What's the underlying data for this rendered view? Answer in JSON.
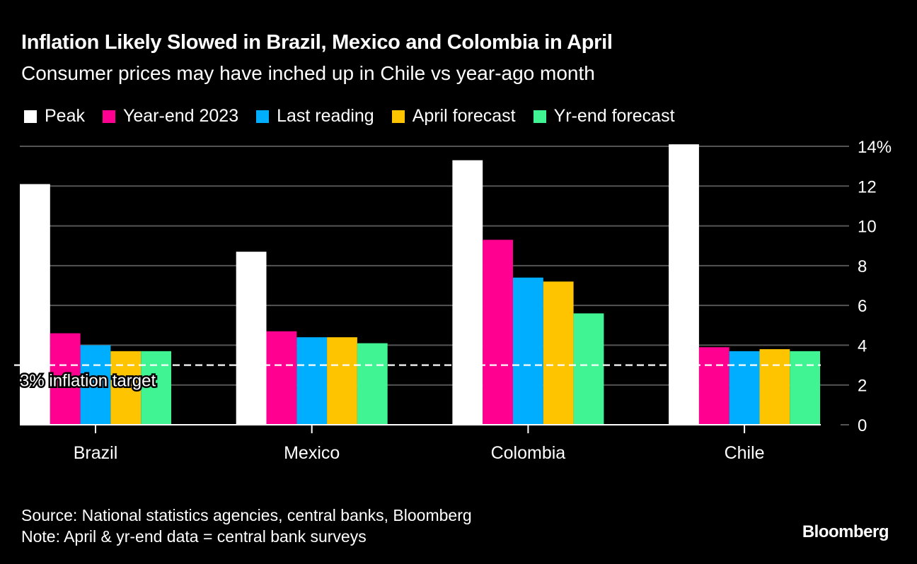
{
  "chart_data": {
    "type": "bar",
    "title": "Inflation Likely Slowed in Brazil, Mexico and Colombia in April",
    "subtitle": "Consumer prices may have inched up in Chile vs year-ago month",
    "xlabel": "",
    "ylabel": "",
    "categories": [
      "Brazil",
      "Mexico",
      "Colombia",
      "Chile"
    ],
    "series": [
      {
        "name": "Peak",
        "color": "#ffffff",
        "values": [
          12.1,
          8.7,
          13.3,
          14.1
        ]
      },
      {
        "name": "Year-end 2023",
        "color": "#ff0090",
        "values": [
          4.6,
          4.7,
          9.3,
          3.9
        ]
      },
      {
        "name": "Last reading",
        "color": "#00aeff",
        "values": [
          4.0,
          4.4,
          7.4,
          3.7
        ]
      },
      {
        "name": "April forecast",
        "color": "#ffc400",
        "values": [
          3.7,
          4.4,
          7.2,
          3.8
        ]
      },
      {
        "name": "Yr-end forecast",
        "color": "#40f494",
        "values": [
          3.7,
          4.1,
          5.6,
          3.7
        ]
      }
    ],
    "ylim": [
      0,
      14
    ],
    "yticks": [
      0,
      2,
      4,
      6,
      8,
      10,
      12,
      14
    ],
    "ytick_labels": [
      "0",
      "2",
      "4",
      "6",
      "8",
      "10",
      "12",
      "14%"
    ],
    "y_axis_side": "right",
    "grid": true,
    "legend_position": "top-left",
    "reference_line": {
      "value": 3,
      "label": "3% inflation target",
      "style": "dashed"
    }
  },
  "footer": {
    "source": "Source: National statistics agencies, central banks, Bloomberg",
    "note": "Note: April & yr-end data = central bank surveys",
    "brand": "Bloomberg"
  }
}
